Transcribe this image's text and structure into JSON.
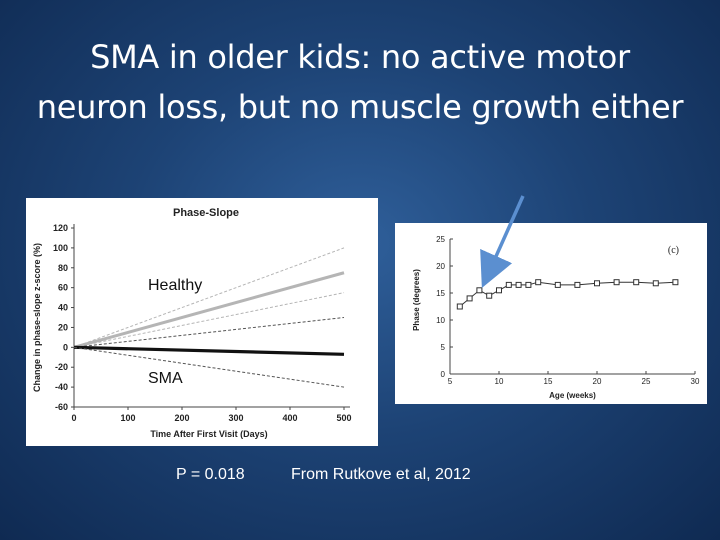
{
  "slide": {
    "title_line1": "SMA in older kids: no active motor",
    "title_line2": "neuron loss, but no muscle growth either",
    "label_healthy": "Healthy",
    "label_sma": "SMA",
    "p_value": "P =  0.018",
    "citation": "From Rutkove et al, 2012",
    "background_color": "#1d4375",
    "arrow_color": "#5b8fd0"
  },
  "chart_data": [
    {
      "type": "line",
      "title": "Phase-Slope",
      "xlabel": "Time After First Visit (Days)",
      "ylabel": "Change in phase-slope z-score (%)",
      "xlim": [
        0,
        500
      ],
      "ylim": [
        -60,
        120
      ],
      "x_ticks": [
        "0",
        "100",
        "200",
        "300",
        "400",
        "500"
      ],
      "y_ticks": [
        "120",
        "100",
        "80",
        "60",
        "40",
        "20",
        "0",
        "-20",
        "-40",
        "-60"
      ],
      "series": [
        {
          "style": "gray-upper-bound",
          "x": [
            0,
            500
          ],
          "y": [
            0,
            100
          ]
        },
        {
          "style": "gray-thick-mean",
          "x": [
            0,
            500
          ],
          "y": [
            0,
            75
          ]
        },
        {
          "style": "gray-lower-bound",
          "x": [
            0,
            500
          ],
          "y": [
            0,
            55
          ]
        },
        {
          "style": "black-upper-bound",
          "x": [
            0,
            500
          ],
          "y": [
            0,
            30
          ]
        },
        {
          "style": "black-thick-mean",
          "x": [
            0,
            500
          ],
          "y": [
            0,
            -7
          ]
        },
        {
          "style": "black-lower-bound",
          "x": [
            0,
            500
          ],
          "y": [
            0,
            -40
          ]
        }
      ],
      "colors": {
        "healthy": "#b5b5b5",
        "sma": "#111111"
      }
    },
    {
      "type": "line",
      "title": "",
      "panel_label": "(c)",
      "xlabel": "Age (weeks)",
      "ylabel": "Phase (degrees)",
      "xlim": [
        5,
        30
      ],
      "ylim": [
        0,
        25
      ],
      "x_ticks": [
        "5",
        "10",
        "15",
        "20",
        "25",
        "30"
      ],
      "y_ticks": [
        "0",
        "5",
        "10",
        "15",
        "20",
        "25"
      ],
      "series": [
        {
          "x": [
            6,
            7,
            8,
            9,
            10,
            11,
            12,
            13,
            14,
            16,
            18,
            20,
            22,
            24,
            26,
            28
          ],
          "y": [
            12.5,
            14,
            15.5,
            14.5,
            15.5,
            16.5,
            16.5,
            16.5,
            17,
            16.5,
            16.5,
            16.8,
            17,
            17,
            16.8,
            17
          ]
        }
      ]
    }
  ]
}
